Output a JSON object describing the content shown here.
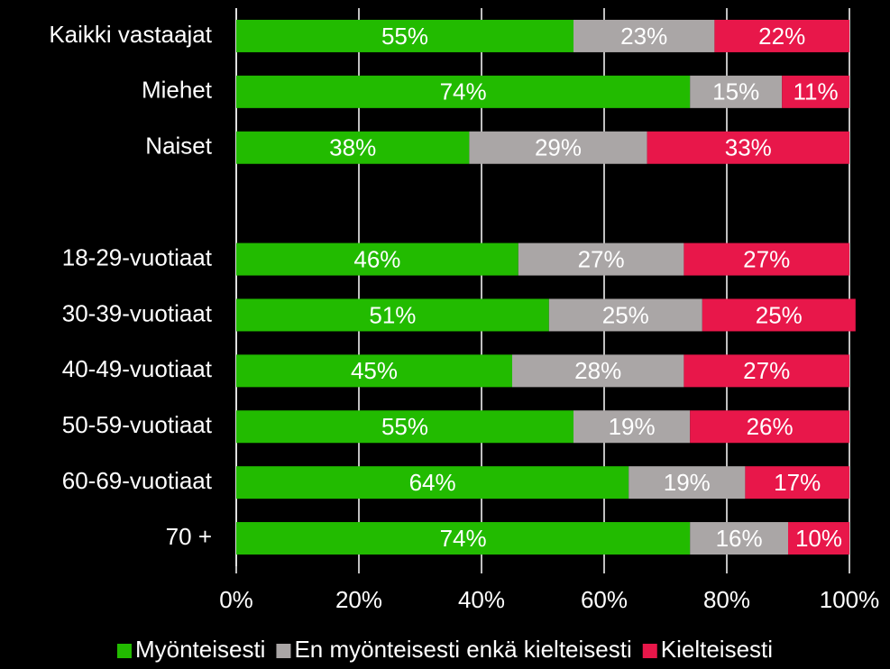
{
  "chart_data": {
    "type": "stacked-bar-horizontal",
    "categories": [
      "Kaikki vastaajat",
      "Miehet",
      "Naiset",
      null,
      "18-29-vuotiaat",
      "30-39-vuotiaat",
      "40-49-vuotiaat",
      "50-59-vuotiaat",
      "60-69-vuotiaat",
      "70 +"
    ],
    "series": [
      {
        "name": "Myönteisesti",
        "color": "#22bb00",
        "values": [
          55,
          74,
          38,
          null,
          46,
          51,
          45,
          55,
          64,
          74
        ],
        "value_labels": [
          "55%",
          "74%",
          "38%",
          null,
          "46%",
          "51%",
          "45%",
          "55%",
          "64%",
          "74%"
        ]
      },
      {
        "name": "En myönteisesti enkä kielteisesti",
        "color": "#aaa6a6",
        "values": [
          23,
          15,
          29,
          null,
          27,
          25,
          28,
          19,
          19,
          16
        ],
        "value_labels": [
          "23%",
          "15%",
          "29%",
          null,
          "27%",
          "25%",
          "28%",
          "19%",
          "19%",
          "16%"
        ]
      },
      {
        "name": "Kielteisesti",
        "color": "#e8174a",
        "values": [
          22,
          11,
          33,
          null,
          27,
          25,
          27,
          26,
          17,
          10
        ],
        "value_labels": [
          "22%",
          "11%",
          "33%",
          null,
          "27%",
          "25%",
          "27%",
          "26%",
          "17%",
          "10%"
        ]
      }
    ],
    "xlim": [
      0,
      100
    ],
    "xticks": [
      {
        "value": 0,
        "label": "0%"
      },
      {
        "value": 20,
        "label": "20%"
      },
      {
        "value": 40,
        "label": "40%"
      },
      {
        "value": 60,
        "label": "60%"
      },
      {
        "value": 80,
        "label": "80%"
      },
      {
        "value": 100,
        "label": "100%"
      }
    ],
    "grid": true,
    "legend": "bottom"
  }
}
